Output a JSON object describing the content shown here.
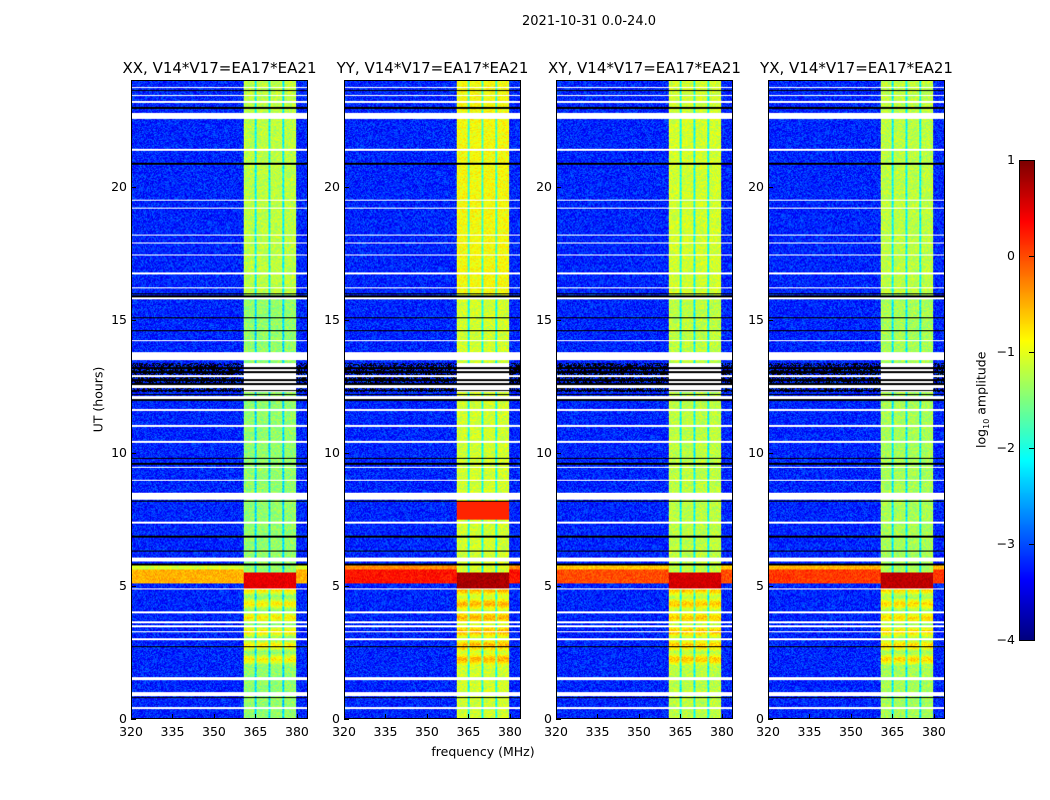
{
  "chart_data": {
    "type": "heatmap",
    "title": "2021-10-31 0.0-24.0",
    "xlabel": "frequency (MHz)",
    "ylabel": "UT (hours)",
    "xlim": [
      320,
      384
    ],
    "ylim": [
      0,
      24
    ],
    "xticks": [
      320,
      335,
      350,
      365,
      380
    ],
    "yticks": [
      0,
      5,
      10,
      15,
      20
    ],
    "colorbar": {
      "label_prefix": "log",
      "label_sub": "10",
      "label_suffix": " amplitude",
      "range": [
        -4,
        1
      ],
      "ticks": [
        1,
        0,
        -1,
        -2,
        -3,
        -4
      ],
      "tick_labels": [
        "1",
        "0",
        "−1",
        "−2",
        "−3",
        "−4"
      ],
      "colormap": "jet"
    },
    "background_level": -3.2,
    "band_mhz": [
      360.5,
      380
    ],
    "subband_edges_mhz": [
      365,
      370,
      375
    ],
    "flagged_hours": [
      [
        0.35,
        0.45
      ],
      [
        0.85,
        1.0
      ],
      [
        1.45,
        1.55
      ],
      [
        2.95,
        3.02
      ],
      [
        3.25,
        3.3
      ],
      [
        3.45,
        3.5
      ],
      [
        3.6,
        3.66
      ],
      [
        3.95,
        4.02
      ],
      [
        4.85,
        4.92
      ],
      [
        5.9,
        6.05
      ],
      [
        7.35,
        7.42
      ],
      [
        8.25,
        8.5
      ],
      [
        8.95,
        9.0
      ],
      [
        9.45,
        9.5
      ],
      [
        10.4,
        10.45
      ],
      [
        11.0,
        11.05
      ],
      [
        11.6,
        11.65
      ],
      [
        12.05,
        12.15
      ],
      [
        12.45,
        12.55
      ],
      [
        12.85,
        12.95
      ],
      [
        13.5,
        13.8
      ],
      [
        14.2,
        14.25
      ],
      [
        15.8,
        15.85
      ],
      [
        16.2,
        16.25
      ],
      [
        16.75,
        16.8
      ],
      [
        17.45,
        17.5
      ],
      [
        17.9,
        17.95
      ],
      [
        18.2,
        18.25
      ],
      [
        19.2,
        19.25
      ],
      [
        19.5,
        19.55
      ],
      [
        21.4,
        21.45
      ],
      [
        22.6,
        22.8
      ],
      [
        23.2,
        23.25
      ],
      [
        23.45,
        23.5
      ],
      [
        23.75,
        23.8
      ]
    ],
    "black_line_hours": [
      0.8,
      2.7,
      5.8,
      6.3,
      6.85,
      8.2,
      9.6,
      9.8,
      12.0,
      12.2,
      12.35,
      12.6,
      12.75,
      13.05,
      13.2,
      14.6,
      15.1,
      15.9,
      16.0,
      20.9,
      23.0,
      23.65
    ],
    "panels": [
      {
        "title": "XX, V14*V17=EA17*EA21",
        "band_level": -1.4,
        "upper_band_level": -1.2,
        "rfi_level": -0.5,
        "rfi_core_level": 0.5
      },
      {
        "title": "YY, V14*V17=EA17*EA21",
        "band_level": -1.1,
        "upper_band_level": -0.9,
        "rfi_level": 0.3,
        "rfi_core_level": 0.8
      },
      {
        "title": "XY, V14*V17=EA17*EA21",
        "band_level": -1.2,
        "upper_band_level": -1.1,
        "rfi_level": 0.0,
        "rfi_core_level": 0.6
      },
      {
        "title": "YX, V14*V17=EA17*EA21",
        "band_level": -1.3,
        "upper_band_level": -1.2,
        "rfi_level": 0.1,
        "rfi_core_level": 0.7
      }
    ]
  }
}
